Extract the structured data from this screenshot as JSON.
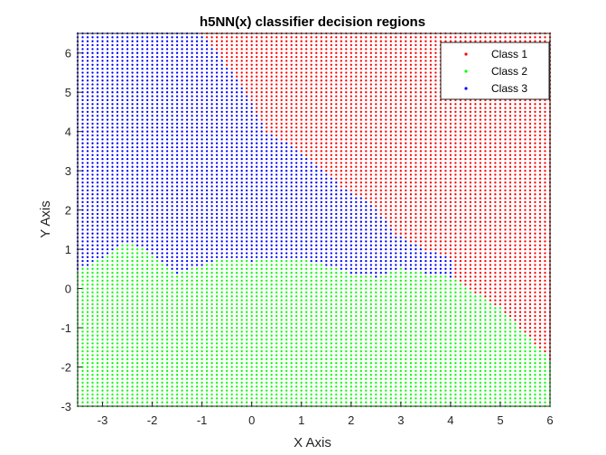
{
  "chart_data": {
    "type": "scatter",
    "title": "h5NN(x) classifier decision regions",
    "xlabel": "X Axis",
    "ylabel": "Y Axis",
    "xlim": [
      -3.5,
      6
    ],
    "ylim": [
      -3,
      6.5
    ],
    "xticks": [
      -3,
      -2,
      -1,
      0,
      1,
      2,
      3,
      4,
      5,
      6
    ],
    "yticks": [
      -3,
      -2,
      -1,
      0,
      1,
      2,
      3,
      4,
      5,
      6
    ],
    "grid": false,
    "legend_position": "top-right",
    "series": [
      {
        "name": "Class 1",
        "color": "#ff0000"
      },
      {
        "name": "Class 2",
        "color": "#00ff00"
      },
      {
        "name": "Class 3",
        "color": "#0000ff"
      }
    ],
    "grid_spacing": 0.1,
    "region_boundaries": {
      "class1_class3_boundary": [
        [
          -1.0,
          6.5
        ],
        [
          -0.2,
          5.2
        ],
        [
          0.3,
          4.0
        ],
        [
          1.0,
          3.5
        ],
        [
          1.8,
          2.6
        ],
        [
          2.4,
          2.2
        ],
        [
          2.9,
          1.4
        ],
        [
          3.5,
          1.0
        ],
        [
          4.0,
          0.8
        ]
      ],
      "class1_class2_boundary": [
        [
          3.0,
          0.5
        ],
        [
          4.0,
          0.3
        ],
        [
          5.0,
          -0.5
        ],
        [
          6.0,
          -1.8
        ]
      ],
      "class2_upper_boundary": [
        [
          -3.5,
          0.45
        ],
        [
          -3.0,
          0.8
        ],
        [
          -2.5,
          1.2
        ],
        [
          -2.0,
          0.9
        ],
        [
          -1.5,
          0.4
        ],
        [
          -1.0,
          0.6
        ],
        [
          -0.5,
          0.8
        ],
        [
          0.0,
          0.7
        ],
        [
          0.5,
          0.8
        ],
        [
          1.0,
          0.75
        ],
        [
          1.5,
          0.6
        ],
        [
          2.0,
          0.4
        ],
        [
          2.5,
          0.3
        ],
        [
          3.0,
          0.5
        ]
      ]
    }
  }
}
